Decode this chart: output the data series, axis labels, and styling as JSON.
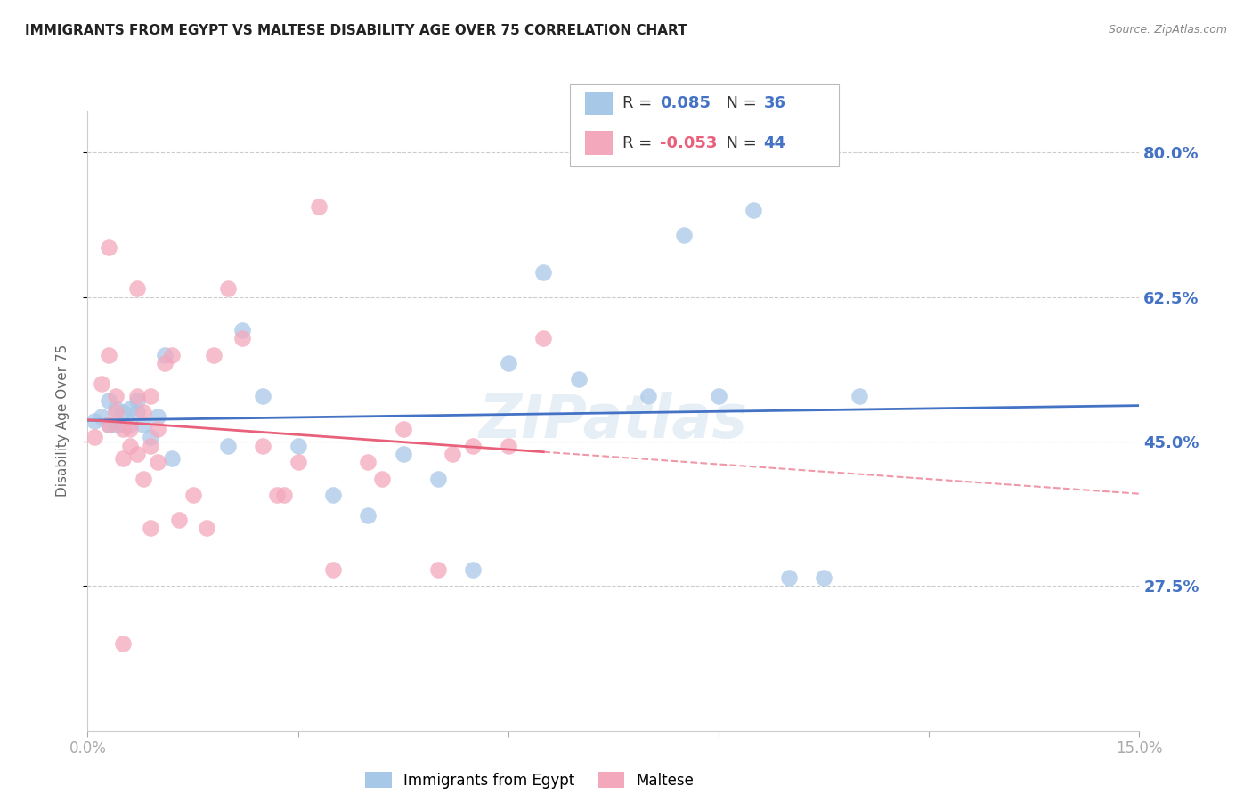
{
  "title": "IMMIGRANTS FROM EGYPT VS MALTESE DISABILITY AGE OVER 75 CORRELATION CHART",
  "source": "Source: ZipAtlas.com",
  "ylabel_label": "Disability Age Over 75",
  "legend_label_1": "Immigrants from Egypt",
  "legend_label_2": "Maltese",
  "r1": "0.085",
  "n1": "36",
  "r2": "-0.053",
  "n2": "44",
  "xlim": [
    0.0,
    0.15
  ],
  "ylim": [
    0.1,
    0.85
  ],
  "xticks": [
    0.0,
    0.03,
    0.06,
    0.09,
    0.12,
    0.15
  ],
  "xtick_labels": [
    "0.0%",
    "",
    "",
    "",
    "",
    "15.0%"
  ],
  "ytick_labels": [
    "27.5%",
    "45.0%",
    "62.5%",
    "80.0%"
  ],
  "yticks": [
    0.275,
    0.45,
    0.625,
    0.8
  ],
  "color_blue": "#a8c8e8",
  "color_pink": "#f4a8bc",
  "line_blue": "#4472c4",
  "line_pink": "#e8607a",
  "bg_color": "#ffffff",
  "watermark": "ZIPatlas",
  "blue_points_x": [
    0.001,
    0.002,
    0.003,
    0.003,
    0.004,
    0.004,
    0.005,
    0.005,
    0.006,
    0.006,
    0.007,
    0.007,
    0.008,
    0.009,
    0.01,
    0.011,
    0.012,
    0.02,
    0.022,
    0.025,
    0.03,
    0.035,
    0.04,
    0.045,
    0.05,
    0.055,
    0.06,
    0.065,
    0.07,
    0.08,
    0.085,
    0.09,
    0.095,
    0.1,
    0.105,
    0.11
  ],
  "blue_points_y": [
    0.475,
    0.48,
    0.47,
    0.5,
    0.47,
    0.49,
    0.47,
    0.485,
    0.47,
    0.49,
    0.5,
    0.485,
    0.47,
    0.455,
    0.48,
    0.555,
    0.43,
    0.445,
    0.585,
    0.505,
    0.445,
    0.385,
    0.36,
    0.435,
    0.405,
    0.295,
    0.545,
    0.655,
    0.525,
    0.505,
    0.7,
    0.505,
    0.73,
    0.285,
    0.285,
    0.505
  ],
  "pink_points_x": [
    0.001,
    0.002,
    0.003,
    0.003,
    0.004,
    0.004,
    0.005,
    0.005,
    0.006,
    0.006,
    0.007,
    0.007,
    0.008,
    0.008,
    0.009,
    0.009,
    0.01,
    0.01,
    0.011,
    0.012,
    0.013,
    0.015,
    0.017,
    0.018,
    0.02,
    0.022,
    0.025,
    0.027,
    0.03,
    0.033,
    0.035,
    0.04,
    0.042,
    0.045,
    0.05,
    0.052,
    0.055,
    0.06,
    0.065,
    0.028,
    0.003,
    0.005,
    0.007,
    0.009
  ],
  "pink_points_y": [
    0.455,
    0.52,
    0.47,
    0.555,
    0.485,
    0.505,
    0.43,
    0.465,
    0.445,
    0.465,
    0.435,
    0.505,
    0.485,
    0.405,
    0.505,
    0.445,
    0.425,
    0.465,
    0.545,
    0.555,
    0.355,
    0.385,
    0.345,
    0.555,
    0.635,
    0.575,
    0.445,
    0.385,
    0.425,
    0.735,
    0.295,
    0.425,
    0.405,
    0.465,
    0.295,
    0.435,
    0.445,
    0.445,
    0.575,
    0.385,
    0.685,
    0.205,
    0.635,
    0.345
  ]
}
